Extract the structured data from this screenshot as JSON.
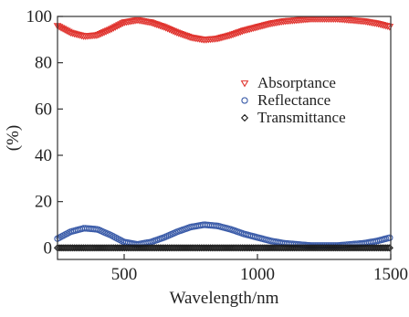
{
  "chart_data": {
    "type": "scatter",
    "xlabel": "Wavelength/nm",
    "ylabel": "(%)",
    "xlim": [
      250,
      1500
    ],
    "ylim": [
      -5,
      100
    ],
    "x_ticks": [
      500,
      1000,
      1500
    ],
    "y_ticks": [
      0,
      20,
      40,
      60,
      80,
      100
    ],
    "grid": false,
    "legend_position": "right",
    "series": [
      {
        "name": "Absorptance",
        "marker": "triangle-down",
        "color": "#e0342f",
        "x": [
          250,
          300,
          350,
          400,
          450,
          500,
          550,
          600,
          650,
          700,
          750,
          800,
          850,
          900,
          950,
          1000,
          1050,
          1100,
          1150,
          1200,
          1250,
          1300,
          1350,
          1400,
          1450,
          1500
        ],
        "y": [
          96,
          93,
          91.5,
          92,
          94.5,
          97.5,
          98.5,
          97.5,
          95.5,
          93,
          91,
          90,
          90.5,
          92,
          94,
          95.5,
          97,
          98,
          98.5,
          99,
          99,
          99,
          98.5,
          98,
          97,
          95.5
        ]
      },
      {
        "name": "Reflectance",
        "marker": "circle",
        "color": "#3a5ba8",
        "x": [
          250,
          300,
          350,
          400,
          450,
          500,
          550,
          600,
          650,
          700,
          750,
          800,
          850,
          900,
          950,
          1000,
          1050,
          1100,
          1150,
          1200,
          1250,
          1300,
          1350,
          1400,
          1450,
          1500
        ],
        "y": [
          4,
          7,
          8.5,
          8,
          5.5,
          2.5,
          1.5,
          2.5,
          4.5,
          7,
          9,
          10,
          9.5,
          8,
          6,
          4.5,
          3,
          2,
          1.5,
          1,
          1,
          1,
          1.5,
          2,
          3,
          4.5
        ]
      },
      {
        "name": "Transmittance",
        "marker": "diamond",
        "color": "#1a1a1a",
        "x": [
          250,
          300,
          350,
          400,
          450,
          500,
          550,
          600,
          650,
          700,
          750,
          800,
          850,
          900,
          950,
          1000,
          1050,
          1100,
          1150,
          1200,
          1250,
          1300,
          1350,
          1400,
          1450,
          1500
        ],
        "y": [
          0,
          0,
          0,
          0,
          0,
          0,
          0,
          0,
          0,
          0,
          0,
          0,
          0,
          0,
          0,
          0,
          0,
          0,
          0,
          0,
          0,
          0,
          0,
          0,
          0,
          0
        ]
      }
    ]
  }
}
